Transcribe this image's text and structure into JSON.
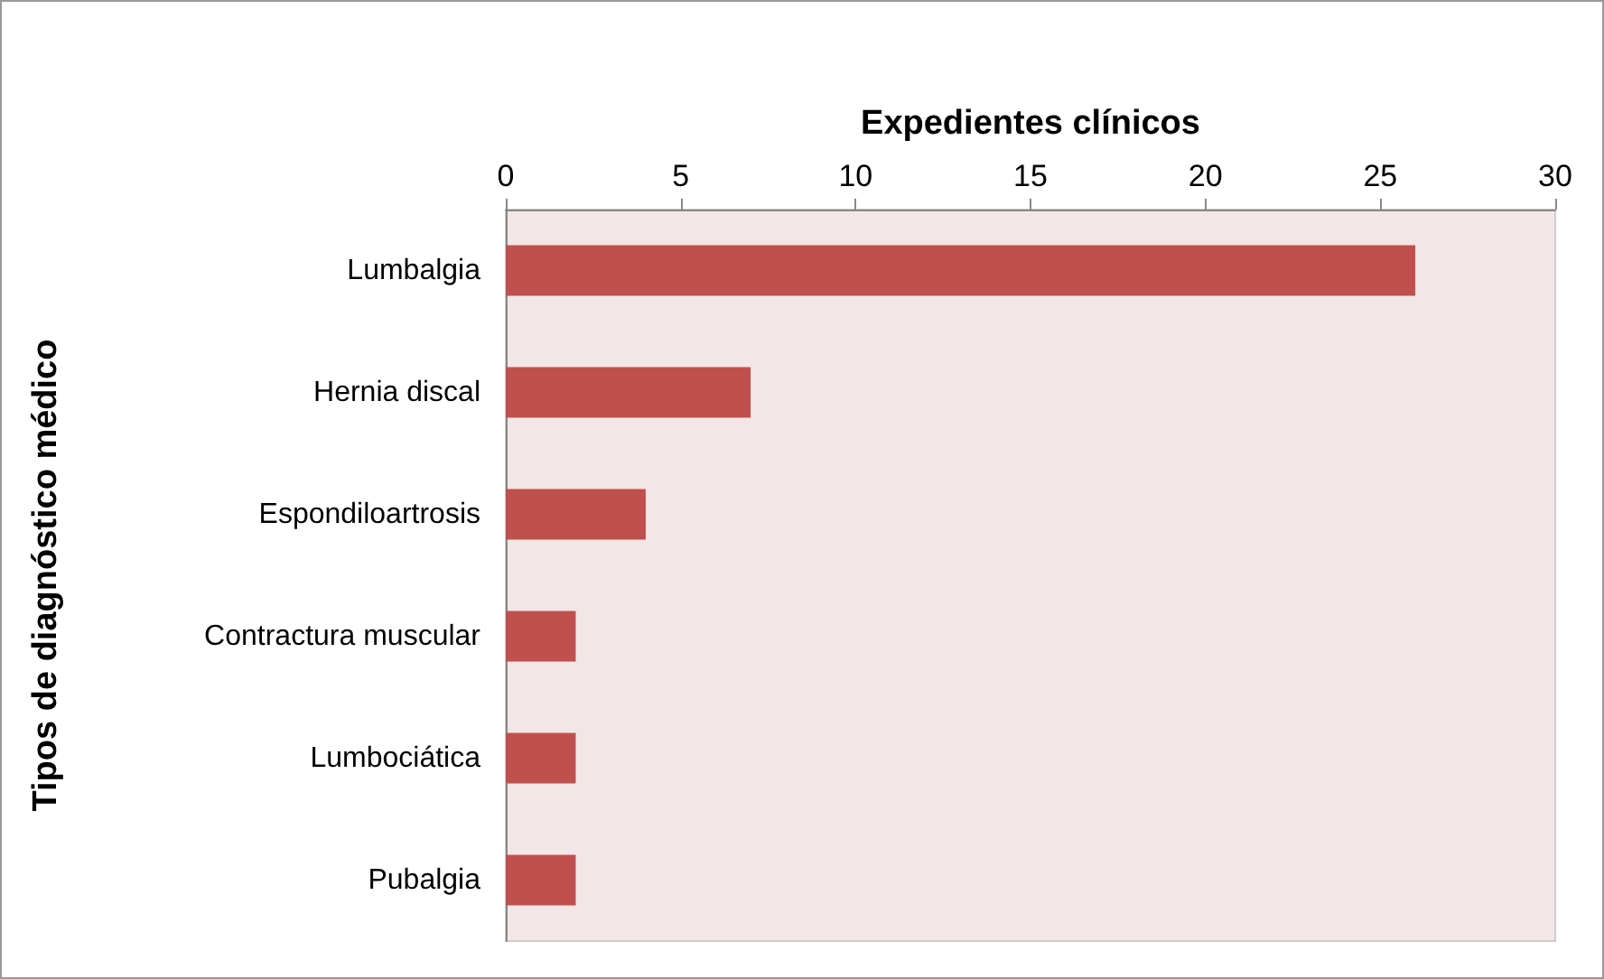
{
  "chart_data": {
    "type": "bar",
    "orientation": "horizontal",
    "xlabel": "Expedientes clínicos",
    "ylabel": "Tipos de diagnóstico médico",
    "categories": [
      "Lumbalgia",
      "Hernia discal",
      "Espondiloartrosis",
      "Contractura muscular",
      "Lumbociática",
      "Pubalgia"
    ],
    "values": [
      26,
      7,
      4,
      2,
      2,
      2
    ],
    "color": "#c0504d",
    "xlim": [
      0,
      30
    ],
    "xticks": [
      0,
      5,
      10,
      15,
      20,
      25,
      30
    ],
    "grid": false
  }
}
